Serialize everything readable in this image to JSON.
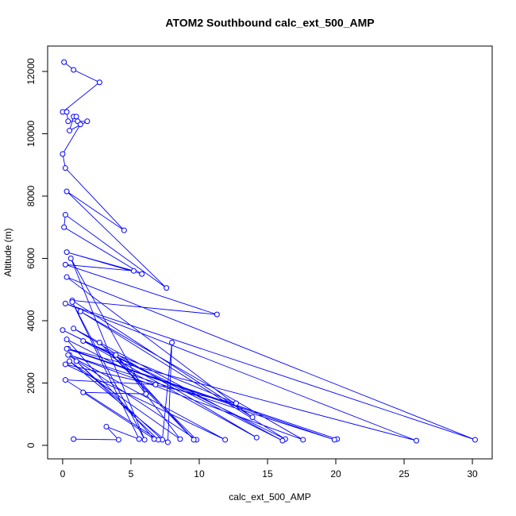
{
  "chart_data": {
    "type": "line",
    "markers": true,
    "title": "ATOM2 Southbound calc_ext_500_AMP",
    "x_label": "calc_ext_500_AMP",
    "y_label": "Altitude (m)",
    "color": "#0000ff",
    "x": [
      0.1,
      0.8,
      2.7,
      0.0,
      0.3,
      0.4,
      1.8,
      0.5,
      0.8,
      1.0,
      1.1,
      1.3,
      0.0,
      0.2,
      4.5,
      0.3,
      7.6,
      0.2,
      0.1,
      5.8,
      0.3,
      5.2,
      0.2,
      11.3,
      0.7,
      13.9,
      0.3,
      30.2,
      0.2,
      25.9,
      0.4,
      20.1,
      0.3,
      19.9,
      0.5,
      17.6,
      1.3,
      16.3,
      0.0,
      16.1,
      0.8,
      14.2,
      1.5,
      12.7,
      0.2,
      11.9,
      0.4,
      9.8,
      2.7,
      9.6,
      3.9,
      8.6,
      0.5,
      7.7,
      8.0,
      7.3,
      1.0,
      7.0,
      0.2,
      6.8,
      0.3,
      6.7,
      1.5,
      6.1,
      0.6,
      6.0,
      0.7,
      5.6,
      3.2,
      4.1,
      0.8
    ],
    "values": [
      12300,
      12050,
      11650,
      10700,
      10700,
      10400,
      10400,
      10100,
      10550,
      10550,
      10400,
      10300,
      9350,
      8900,
      6900,
      8150,
      5050,
      7400,
      7000,
      5500,
      6200,
      5600,
      5800,
      4200,
      4650,
      900,
      5400,
      180,
      4550,
      150,
      3100,
      200,
      3100,
      180,
      2900,
      180,
      4300,
      200,
      3700,
      150,
      3750,
      250,
      3350,
      1350,
      2600,
      180,
      2900,
      180,
      3300,
      180,
      2900,
      200,
      2700,
      100,
      3300,
      180,
      2700,
      180,
      2100,
      1950,
      3400,
      200,
      1700,
      1650,
      6000,
      180,
      4600,
      200,
      600,
      180,
      200
    ],
    "xlim": [
      -1.1,
      31.45
    ],
    "ylim": [
      -433,
      12815
    ],
    "xticks": [
      0,
      5,
      10,
      15,
      20,
      25,
      30
    ],
    "yticks": [
      0,
      2000,
      4000,
      6000,
      8000,
      10000,
      12000
    ]
  }
}
